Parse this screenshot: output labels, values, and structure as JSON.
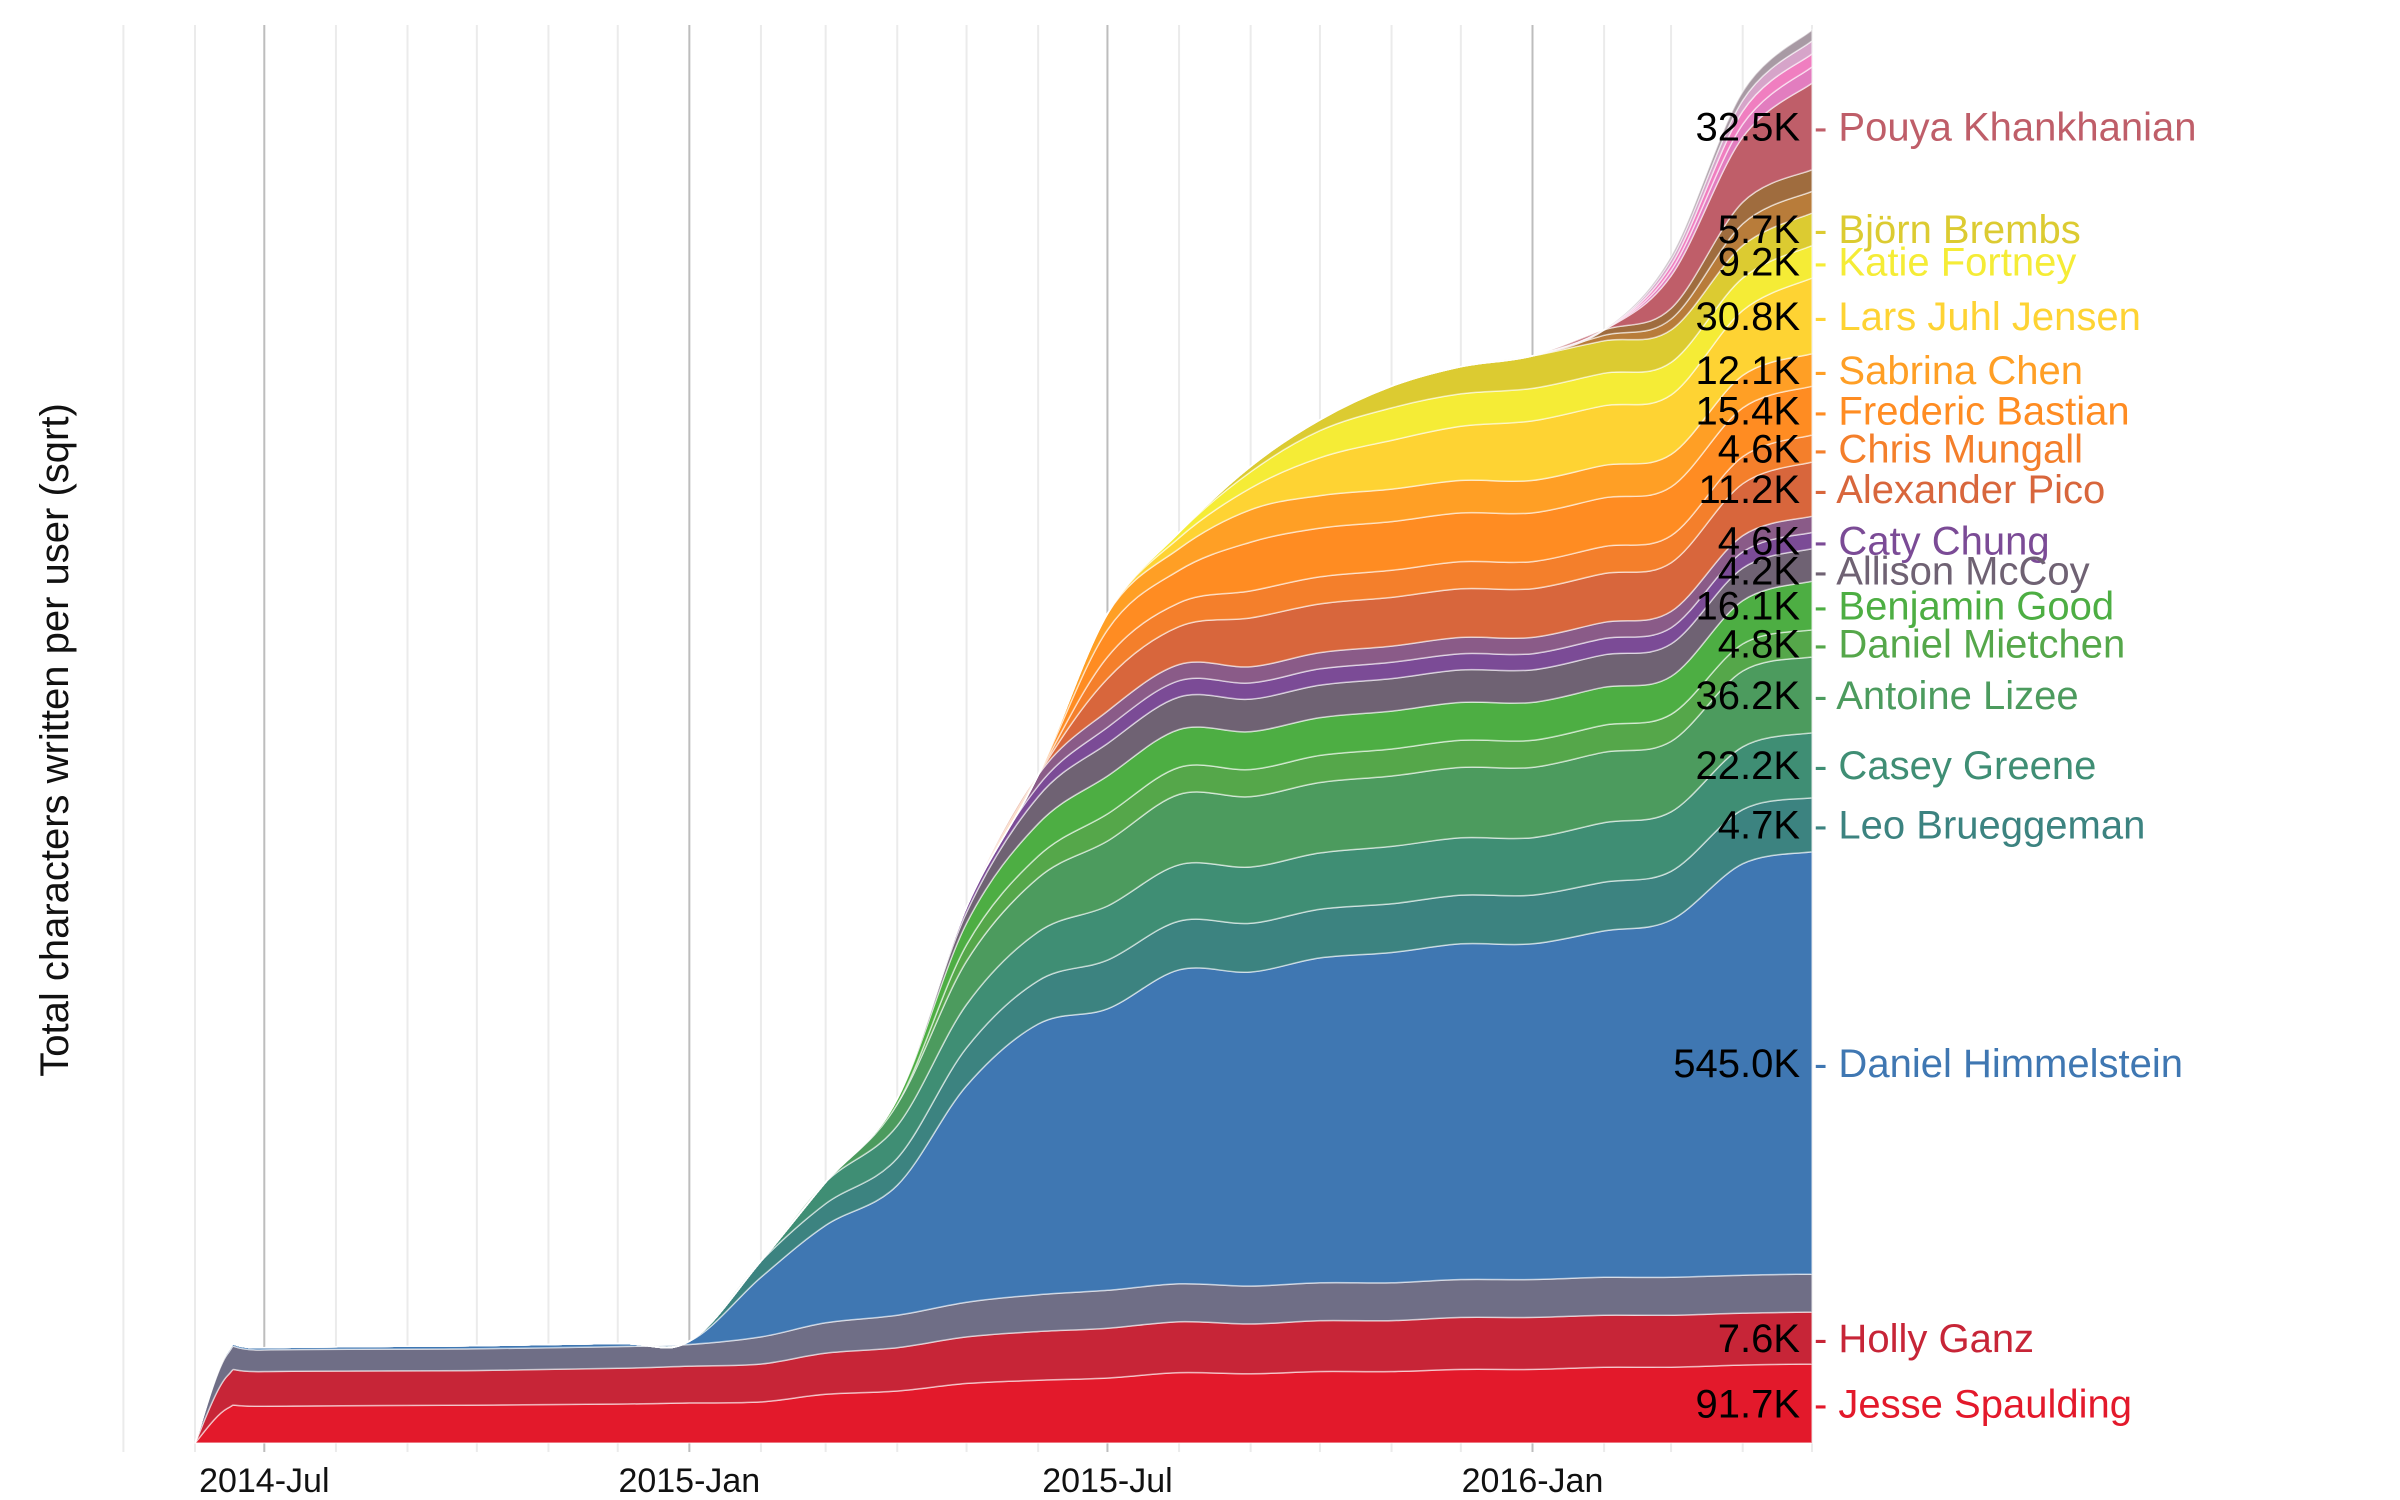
{
  "chart_data": {
    "type": "area",
    "ylabel": "Total characters written per user (sqrt)",
    "x_ticks": [
      "2014-Jul",
      "2015-Jan",
      "2015-Jul",
      "2016-Jan"
    ],
    "x_tick_dates": [
      "2014-07-01",
      "2015-01-01",
      "2015-07-01",
      "2016-01-01"
    ],
    "x_range": [
      "2014-06-01",
      "2016-05-01"
    ],
    "grid": "vertical",
    "dates": [
      "2014-06-01",
      "2014-06-15",
      "2014-07-01",
      "2014-10-01",
      "2014-12-01",
      "2015-01-01",
      "2015-02-01",
      "2015-03-01",
      "2015-04-01",
      "2015-05-01",
      "2015-06-01",
      "2015-07-01",
      "2015-08-01",
      "2015-09-01",
      "2015-10-01",
      "2015-11-01",
      "2015-12-01",
      "2016-01-01",
      "2016-02-01",
      "2016-03-01",
      "2016-04-01",
      "2016-05-01"
    ],
    "series": [
      {
        "name": "Jesse Spaulding",
        "label": "91.7K",
        "color": "#E3192B",
        "values": [
          0,
          32,
          34,
          35,
          36,
          37,
          38,
          45,
          48,
          55,
          58,
          60,
          65,
          64,
          66,
          66,
          68,
          68,
          70,
          70,
          72,
          73
        ]
      },
      {
        "name": "Holly Ganz",
        "label": "7.6K",
        "color": "#C72537",
        "values": [
          0,
          30,
          32,
          32,
          33,
          34,
          35,
          38,
          40,
          43,
          45,
          46,
          47,
          46,
          47,
          47,
          48,
          48,
          48,
          48,
          48,
          48
        ]
      },
      {
        "name": "",
        "color": "#6F6E86",
        "values": [
          0,
          20,
          20,
          20,
          20,
          20,
          25,
          28,
          30,
          32,
          34,
          35,
          35,
          35,
          35,
          35,
          35,
          35,
          35,
          35,
          35,
          35
        ]
      },
      {
        "name": "Daniel Himmelstein",
        "label": "545.0K",
        "color": "#3F77B2",
        "values": [
          0,
          2,
          2,
          3,
          3,
          3,
          55,
          90,
          120,
          200,
          250,
          260,
          290,
          290,
          300,
          305,
          310,
          310,
          320,
          330,
          380,
          390
        ]
      },
      {
        "name": "Leo Brueggeman",
        "label": "4.7K",
        "color": "#3C8380",
        "values": [
          0,
          0,
          0,
          0,
          0,
          0,
          15,
          20,
          25,
          35,
          40,
          45,
          45,
          45,
          45,
          45,
          45,
          45,
          45,
          45,
          50,
          50
        ]
      },
      {
        "name": "Casey Greene",
        "label": "22.2K",
        "color": "#3F8E74",
        "values": [
          0,
          0,
          0,
          0,
          0,
          0,
          0,
          20,
          30,
          40,
          45,
          50,
          52,
          52,
          52,
          53,
          53,
          53,
          55,
          55,
          58,
          60
        ]
      },
      {
        "name": "Antoine Lizee",
        "label": "36.2K",
        "color": "#4C9B5E",
        "values": [
          0,
          0,
          0,
          0,
          0,
          0,
          0,
          0,
          20,
          40,
          50,
          60,
          65,
          65,
          65,
          65,
          65,
          65,
          65,
          65,
          70,
          70
        ]
      },
      {
        "name": "Daniel Mietchen",
        "label": "4.8K",
        "color": "#55A74A",
        "values": [
          0,
          0,
          0,
          0,
          0,
          0,
          0,
          0,
          0,
          15,
          20,
          25,
          25,
          25,
          25,
          25,
          25,
          25,
          25,
          25,
          25,
          25
        ]
      },
      {
        "name": "Benjamin Good",
        "label": "16.1K",
        "color": "#4DAE43",
        "values": [
          0,
          0,
          0,
          0,
          0,
          0,
          0,
          0,
          5,
          20,
          30,
          35,
          35,
          35,
          35,
          35,
          35,
          35,
          35,
          35,
          40,
          45
        ]
      },
      {
        "name": "Allison McCoy",
        "label": "4.2K",
        "color": "#6F6273",
        "values": [
          0,
          0,
          0,
          0,
          0,
          0,
          0,
          0,
          0,
          10,
          25,
          30,
          30,
          30,
          30,
          30,
          30,
          30,
          30,
          30,
          30,
          30
        ]
      },
      {
        "name": "Caty Chung",
        "label": "4.6K",
        "color": "#7B4B96",
        "values": [
          0,
          0,
          0,
          0,
          0,
          0,
          0,
          0,
          0,
          5,
          10,
          15,
          15,
          15,
          15,
          15,
          15,
          15,
          15,
          15,
          15,
          15
        ]
      },
      {
        "name": "",
        "color": "#8A5B88",
        "values": [
          0,
          0,
          0,
          0,
          0,
          0,
          0,
          0,
          0,
          0,
          10,
          15,
          15,
          15,
          15,
          15,
          15,
          15,
          15,
          15,
          15,
          15
        ]
      },
      {
        "name": "Alexander Pico",
        "label": "11.2K",
        "color": "#D8663C",
        "values": [
          0,
          0,
          0,
          0,
          0,
          0,
          0,
          0,
          0,
          0,
          0,
          30,
          35,
          45,
          45,
          45,
          45,
          45,
          45,
          45,
          48,
          50
        ]
      },
      {
        "name": "Chris Mungall",
        "label": "4.6K",
        "color": "#F47F2B",
        "values": [
          0,
          0,
          0,
          0,
          0,
          0,
          0,
          0,
          0,
          0,
          0,
          20,
          22,
          25,
          25,
          25,
          25,
          25,
          25,
          25,
          25,
          25
        ]
      },
      {
        "name": "Frederic Bastian",
        "label": "15.4K",
        "color": "#FF8C22",
        "values": [
          0,
          0,
          0,
          0,
          0,
          0,
          0,
          0,
          0,
          0,
          0,
          25,
          30,
          45,
          45,
          45,
          45,
          45,
          45,
          45,
          45,
          45
        ]
      },
      {
        "name": "Sabrina Chen",
        "label": "12.1K",
        "color": "#FF9F25",
        "values": [
          0,
          0,
          0,
          0,
          0,
          0,
          0,
          0,
          0,
          0,
          0,
          15,
          20,
          30,
          30,
          30,
          30,
          30,
          30,
          30,
          30,
          30
        ]
      },
      {
        "name": "Lars Juhl Jensen",
        "label": "30.8K",
        "color": "#FED333",
        "values": [
          0,
          0,
          0,
          0,
          0,
          0,
          0,
          0,
          0,
          0,
          0,
          0,
          10,
          20,
          35,
          45,
          50,
          55,
          55,
          55,
          60,
          70
        ]
      },
      {
        "name": "Katie Fortney",
        "label": "9.2K",
        "color": "#F5EC36",
        "values": [
          0,
          0,
          0,
          0,
          0,
          0,
          0,
          0,
          0,
          0,
          0,
          0,
          5,
          15,
          25,
          30,
          30,
          30,
          30,
          30,
          30,
          30
        ]
      },
      {
        "name": "Björn Brembs",
        "label": "5.7K",
        "color": "#DCCB31",
        "values": [
          0,
          0,
          0,
          0,
          0,
          0,
          0,
          0,
          0,
          0,
          0,
          0,
          0,
          5,
          10,
          20,
          25,
          30,
          30,
          30,
          30,
          30
        ]
      },
      {
        "name": "",
        "color": "#B87C3A",
        "values": [
          0,
          0,
          0,
          0,
          0,
          0,
          0,
          0,
          0,
          0,
          0,
          0,
          0,
          0,
          0,
          0,
          0,
          0,
          5,
          10,
          20,
          20
        ]
      },
      {
        "name": "",
        "color": "#9F6C3E",
        "values": [
          0,
          0,
          0,
          0,
          0,
          0,
          0,
          0,
          0,
          0,
          0,
          0,
          0,
          0,
          0,
          0,
          0,
          0,
          5,
          10,
          20,
          20
        ]
      },
      {
        "name": "Pouya Khankhanian",
        "label": "32.5K",
        "color": "#BF5E69",
        "values": [
          0,
          0,
          0,
          0,
          0,
          0,
          0,
          0,
          0,
          0,
          0,
          0,
          0,
          0,
          0,
          0,
          0,
          0,
          0,
          30,
          60,
          80
        ]
      },
      {
        "name": "",
        "color": "#E27DBF",
        "values": [
          0,
          0,
          0,
          0,
          0,
          0,
          0,
          0,
          0,
          0,
          0,
          0,
          0,
          0,
          0,
          0,
          0,
          0,
          0,
          5,
          12,
          15
        ]
      },
      {
        "name": "",
        "color": "#F07EC0",
        "values": [
          0,
          0,
          0,
          0,
          0,
          0,
          0,
          0,
          0,
          0,
          0,
          0,
          0,
          0,
          0,
          0,
          0,
          0,
          0,
          5,
          12,
          12
        ]
      },
      {
        "name": "",
        "color": "#D6A4C9",
        "values": [
          0,
          0,
          0,
          0,
          0,
          0,
          0,
          0,
          0,
          0,
          0,
          0,
          0,
          0,
          0,
          0,
          0,
          0,
          0,
          5,
          10,
          12
        ]
      },
      {
        "name": "",
        "color": "#A89AA4",
        "values": [
          0,
          0,
          0,
          0,
          0,
          0,
          0,
          0,
          0,
          0,
          0,
          0,
          0,
          0,
          0,
          0,
          0,
          0,
          0,
          3,
          8,
          10
        ]
      }
    ]
  }
}
